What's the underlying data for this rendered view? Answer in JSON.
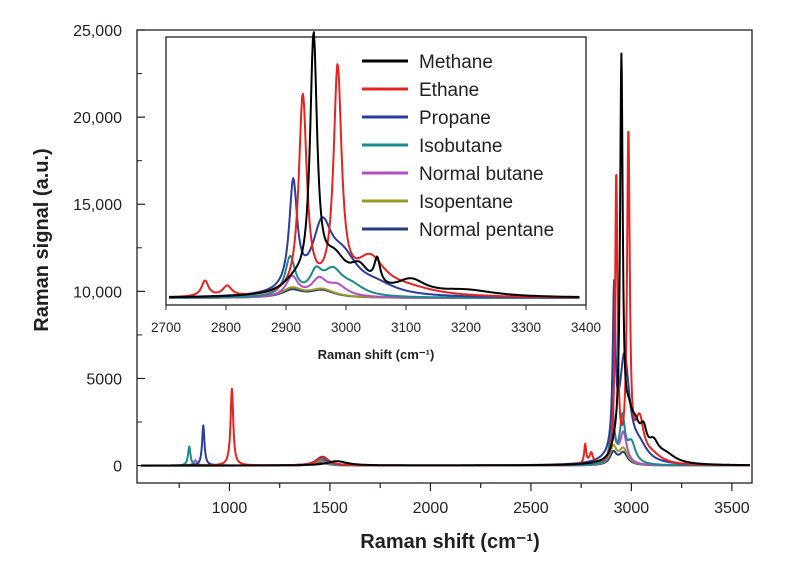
{
  "chart_data": [
    {
      "type": "line",
      "xlabel": "Raman shift (cm⁻¹)",
      "ylabel": "Raman signal (a.u.)",
      "xlim": [
        540,
        3600
      ],
      "ylim": [
        -1000,
        25000
      ],
      "xticks": [
        1000,
        1500,
        2000,
        2500,
        3000,
        3500
      ],
      "xtick_labels": [
        "1000",
        "1500",
        "2000",
        "2500",
        "3000",
        "3500"
      ],
      "yticks": [
        0,
        5000,
        10000,
        15000,
        20000,
        25000
      ],
      "ytick_labels": [
        "0",
        "5000",
        "10,000",
        "15,000",
        "20,000",
        "25,000"
      ],
      "grid": false,
      "series": [
        {
          "name": "Methane",
          "color": "#000000",
          "peaks": [
            [
              1535,
              250,
              60
            ],
            [
              2917,
              500,
              20
            ],
            [
              2950,
              22500,
              8
            ],
            [
              2985,
              2000,
              25
            ],
            [
              3020,
              1500,
              30
            ],
            [
              3060,
              1300,
              20
            ],
            [
              3110,
              900,
              30
            ],
            [
              3170,
              500,
              60
            ]
          ]
        },
        {
          "name": "Ethane",
          "color": "#e52421",
          "peaks": [
            [
              1012,
              4400,
              8
            ],
            [
              1465,
              500,
              35
            ],
            [
              2770,
              1100,
              6
            ],
            [
              2800,
              600,
              10
            ],
            [
              2925,
              16500,
              7
            ],
            [
              2985,
              18700,
              8
            ],
            [
              3040,
              2300,
              25
            ],
            [
              3100,
              500,
              60
            ]
          ]
        },
        {
          "name": "Propane",
          "color": "#2b3d9e",
          "peaks": [
            [
              870,
              2300,
              7
            ],
            [
              1460,
              500,
              35
            ],
            [
              2914,
              9000,
              8
            ],
            [
              2965,
              6000,
              30
            ],
            [
              3040,
              800,
              50
            ]
          ]
        },
        {
          "name": "Isobutane",
          "color": "#1b8a8c",
          "peaks": [
            [
              800,
              1100,
              7
            ],
            [
              1455,
              400,
              35
            ],
            [
              2905,
              3500,
              10
            ],
            [
              2955,
              2600,
              15
            ],
            [
              3000,
              1200,
              25
            ]
          ]
        },
        {
          "name": "Normal butane",
          "color": "#b24fc4",
          "peaks": [
            [
              830,
              300,
              10
            ],
            [
              1450,
              350,
              35
            ],
            [
              2910,
              2000,
              15
            ],
            [
              2960,
              1800,
              20
            ]
          ]
        },
        {
          "name": "Isopentane",
          "color": "#9c9a26",
          "peaks": [
            [
              1450,
              250,
              35
            ],
            [
              2910,
              1000,
              20
            ],
            [
              2960,
              900,
              25
            ]
          ]
        },
        {
          "name": "Normal pentane",
          "color": "#243a7a",
          "peaks": [
            [
              1450,
              200,
              35
            ],
            [
              2910,
              700,
              20
            ],
            [
              2960,
              700,
              25
            ]
          ]
        }
      ]
    },
    {
      "type": "line",
      "title": "",
      "xlabel": "Raman shift (cm⁻¹)",
      "ylabel": "",
      "xlim": [
        2700,
        3400
      ],
      "xticks": [
        2700,
        2800,
        2900,
        3000,
        3100,
        3200,
        3300,
        3400
      ],
      "xtick_labels": [
        "2700",
        "2800",
        "2900",
        "3000",
        "3100",
        "3200",
        "3300",
        "3400"
      ],
      "ylim": [
        0,
        14000
      ],
      "grid": false,
      "legend": "top-right",
      "series": [
        {
          "name": "Methane",
          "color": "#000000",
          "peaks": [
            [
              2915,
              600,
              25
            ],
            [
              2946,
              13600,
              7
            ],
            [
              2980,
              1800,
              25
            ],
            [
              3022,
              1200,
              20
            ],
            [
              3052,
              1400,
              6
            ],
            [
              3108,
              800,
              30
            ],
            [
              3200,
              350,
              60
            ]
          ]
        },
        {
          "name": "Ethane",
          "color": "#e52421",
          "peaks": [
            [
              2765,
              850,
              7
            ],
            [
              2802,
              550,
              9
            ],
            [
              2928,
              10800,
              8
            ],
            [
              2986,
              12100,
              8
            ],
            [
              3040,
              1900,
              30
            ],
            [
              3100,
              400,
              60
            ]
          ]
        },
        {
          "name": "Propane",
          "color": "#2b3d9e",
          "peaks": [
            [
              2912,
              5800,
              8
            ],
            [
              2960,
              3400,
              20
            ],
            [
              2995,
              1800,
              30
            ],
            [
              3050,
              500,
              40
            ]
          ]
        },
        {
          "name": "Isobutane",
          "color": "#1b8a8c",
          "peaks": [
            [
              2907,
              2100,
              10
            ],
            [
              2950,
              1100,
              12
            ],
            [
              2978,
              1300,
              20
            ],
            [
              3010,
              500,
              25
            ]
          ]
        },
        {
          "name": "Normal butane",
          "color": "#b24fc4",
          "peaks": [
            [
              2910,
              1100,
              12
            ],
            [
              2955,
              900,
              15
            ],
            [
              2985,
              600,
              20
            ]
          ]
        },
        {
          "name": "Isopentane",
          "color": "#9c9a26",
          "peaks": [
            [
              2910,
              500,
              20
            ],
            [
              2960,
              450,
              25
            ]
          ]
        },
        {
          "name": "Normal pentane",
          "color": "#243a7a",
          "peaks": [
            [
              2910,
              400,
              20
            ],
            [
              2960,
              400,
              25
            ]
          ]
        }
      ]
    }
  ]
}
